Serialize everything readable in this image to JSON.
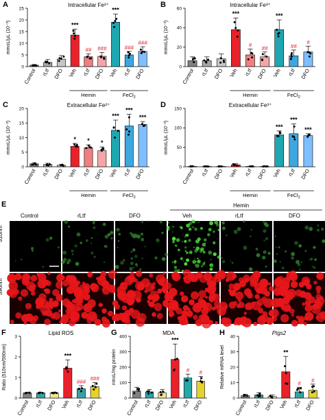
{
  "categories": [
    "Control",
    "rLtf",
    "DFO",
    "Veh",
    "rLtf",
    "DFO",
    "Veh",
    "rLtf",
    "DFO"
  ],
  "categories6": [
    "Control",
    "rLtf",
    "DFO",
    "Veh",
    "rLtf",
    "DFO"
  ],
  "colors": [
    "#808080",
    "#a6a6a6",
    "#c6c6c6",
    "#e8212a",
    "#f08080",
    "#f4a6a6",
    "#1ea7b0",
    "#3da7e0",
    "#7fbfff"
  ],
  "colors6A": [
    "#808080",
    "#33a3a3",
    "#f2e68c",
    "#e8212a",
    "#33a3a3",
    "#e6d22a"
  ],
  "colors6G": [
    "#808080",
    "#2aa6a6",
    "#f2e68c",
    "#e8212a",
    "#2aa6a6",
    "#e6d22a"
  ],
  "micro": {
    "letter": "E",
    "hemin": "Hemin",
    "cols": [
      "Control",
      "rLtf",
      "DFO",
      "Veh",
      "rLtf",
      "DFO"
    ],
    "rows": [
      "510nm",
      "590nm"
    ]
  },
  "chart_data": [
    {
      "type": "bar",
      "letter": "A",
      "title": "Intracellular Fe²⁺",
      "ylabel": "mmoL/μL (10⁻³)",
      "ylim": [
        0,
        25
      ],
      "yticks": [
        0,
        5,
        10,
        15,
        20,
        25
      ],
      "values": [
        0.6,
        1.8,
        3.2,
        13.5,
        4.2,
        4.4,
        19,
        5,
        6.5
      ],
      "errors": [
        0.3,
        1.2,
        1.5,
        2.5,
        1.3,
        1.6,
        3.5,
        1.5,
        2
      ],
      "sig": [
        "",
        "",
        "",
        "***",
        "##",
        "###",
        "***",
        "###",
        "###"
      ],
      "group_labels": [
        "Hemin",
        "FeCl2"
      ]
    },
    {
      "type": "bar",
      "letter": "B",
      "title": "Intracellular Fe³⁺",
      "ylabel": "mmoL/μL (10⁻³)",
      "ylim": [
        0,
        60
      ],
      "yticks": [
        0,
        20,
        40,
        60
      ],
      "values": [
        6,
        6,
        8,
        38,
        12,
        10,
        38,
        11,
        15
      ],
      "errors": [
        4,
        4,
        5,
        12,
        6,
        5,
        10,
        6,
        6
      ],
      "sig": [
        "",
        "",
        "",
        "***",
        "#",
        "##",
        "***",
        "##",
        "#"
      ],
      "group_labels": [
        "Hemin",
        "FeCl2"
      ]
    },
    {
      "type": "bar",
      "letter": "C",
      "title": "Extracellular Fe²⁺",
      "ylabel": "mmoL/μL (10⁻³)",
      "ylim": [
        0,
        20
      ],
      "yticks": [
        0,
        5,
        10,
        15,
        20
      ],
      "values": [
        1,
        0.8,
        0.5,
        7,
        6.5,
        5.5,
        12.5,
        14,
        14.5
      ],
      "errors": [
        0.4,
        0.4,
        0.3,
        1,
        1,
        1.3,
        3.5,
        4,
        1
      ],
      "sig": [
        "",
        "",
        "",
        "*",
        "*",
        "*",
        "***",
        "***",
        "***"
      ],
      "group_labels": [
        "Hemin",
        "FeCl2"
      ]
    },
    {
      "type": "bar",
      "letter": "D",
      "title": "Extracellular Fe³⁺",
      "ylabel": "mmoL/μL (10⁻³)",
      "ylim": [
        0,
        150
      ],
      "yticks": [
        0,
        50,
        100,
        150
      ],
      "values": [
        1,
        1,
        1,
        5,
        1,
        1,
        82,
        85,
        80
      ],
      "errors": [
        0.5,
        0.5,
        0.5,
        3,
        0.5,
        0.5,
        10,
        25,
        5
      ],
      "sig": [
        "",
        "",
        "",
        "",
        "",
        "",
        "***",
        "***",
        "***"
      ],
      "group_labels": [
        "Hemin",
        "FeCl2"
      ]
    },
    {
      "type": "bar",
      "letter": "F",
      "title": "Lipid ROS",
      "ylabel": "Ratio (510nm/590nm)",
      "ylim": [
        0,
        3
      ],
      "yticks": [
        0,
        1,
        2,
        3
      ],
      "values": [
        0.25,
        0.25,
        0.25,
        1.45,
        0.45,
        0.55
      ],
      "errors": [
        0.03,
        0.03,
        0.03,
        0.4,
        0.15,
        0.2
      ],
      "sig": [
        "",
        "",
        "",
        "***",
        "###",
        "###"
      ],
      "group_labels": [
        "Hemin"
      ]
    },
    {
      "type": "bar",
      "letter": "G",
      "title": "MDA",
      "ylabel": "nmoL/mg protein",
      "ylim": [
        0,
        400
      ],
      "yticks": [
        0,
        100,
        200,
        300,
        400
      ],
      "values": [
        45,
        40,
        35,
        250,
        130,
        110
      ],
      "errors": [
        25,
        15,
        20,
        100,
        25,
        30
      ],
      "sig": [
        "",
        "",
        "",
        "***",
        "#",
        "#"
      ],
      "group_labels": [
        "Hemin"
      ]
    },
    {
      "type": "bar",
      "letter": "H",
      "title": "Ptgs2",
      "ylabel": "Relative mRNA level",
      "ylim": [
        0,
        40
      ],
      "yticks": [
        0,
        10,
        20,
        30,
        40
      ],
      "values": [
        1.5,
        2,
        1,
        17,
        4,
        5
      ],
      "errors": [
        1,
        1.5,
        1,
        10,
        3,
        4
      ],
      "sig": [
        "",
        "",
        "",
        "**",
        "#",
        "#"
      ],
      "group_labels": [
        "Hemin"
      ]
    }
  ]
}
